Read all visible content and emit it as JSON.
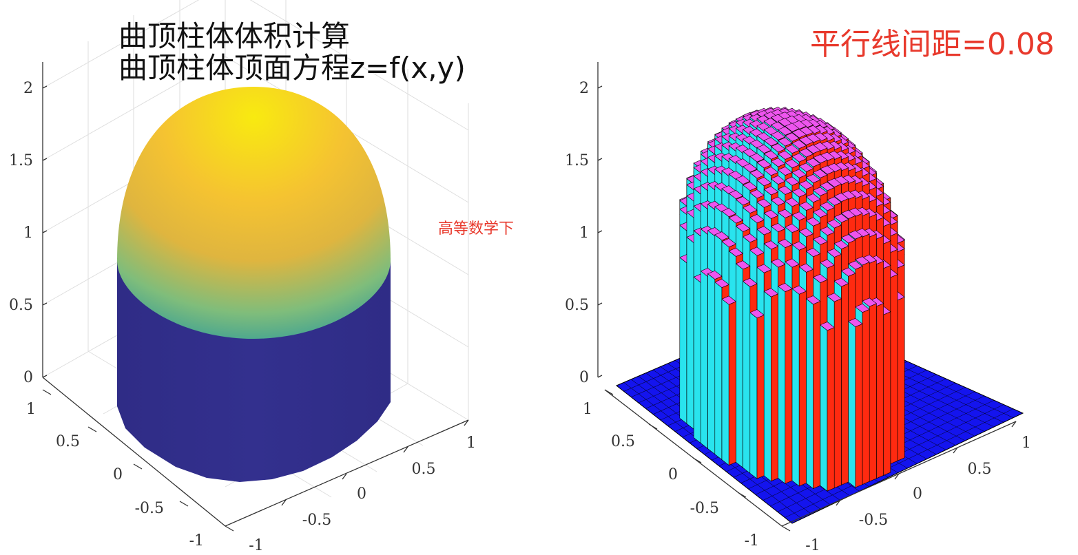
{
  "titles": {
    "line1": "曲顶柱体体积计算",
    "line2": "曲顶柱体顶面方程z=f(x,y)"
  },
  "watermark": "高等数学下",
  "spacing_label": "平行线间距=0.08",
  "colors": {
    "axis": "#333333",
    "grid": "#dcdcdc",
    "cylinder_side": "#2e2c85",
    "dome_top": "#f7e814",
    "dome_mid": "#f2b43b",
    "dome_low": "#4fb7a0",
    "bar_top": "#ee55ee",
    "bar_left": "#29e4ee",
    "bar_right": "#ff2a10",
    "base_plane": "#1212f0",
    "label_red": "#e8392c"
  },
  "chart_data": [
    {
      "type": "surface3d",
      "title": "",
      "function_visible_shape": "cylinder with hemispherical cap",
      "zlim": [
        0,
        2
      ],
      "xlim": [
        -1,
        1
      ],
      "ylim": [
        -1,
        1
      ],
      "z_ticks": [
        "0",
        "0.5",
        "1",
        "1.5",
        "2"
      ],
      "x_ticks": [
        "-1",
        "-0.5",
        "0",
        "0.5",
        "1"
      ],
      "y_ticks": [
        "-1",
        "-0.5",
        "0",
        "0.5",
        "1"
      ],
      "grid": true,
      "colormap": "parula"
    },
    {
      "type": "bar3d",
      "title": "",
      "zlim": [
        0,
        2
      ],
      "xlim": [
        -1,
        1
      ],
      "ylim": [
        -1,
        1
      ],
      "z_ticks": [
        "0",
        "0.5",
        "1",
        "1.5",
        "2"
      ],
      "x_ticks": [
        "-1",
        "-0.5",
        "0",
        "0.5",
        "1"
      ],
      "y_ticks": [
        "-1",
        "-0.5",
        "0",
        "0.5",
        "1"
      ],
      "grid": false,
      "spacing": 0.08
    }
  ]
}
